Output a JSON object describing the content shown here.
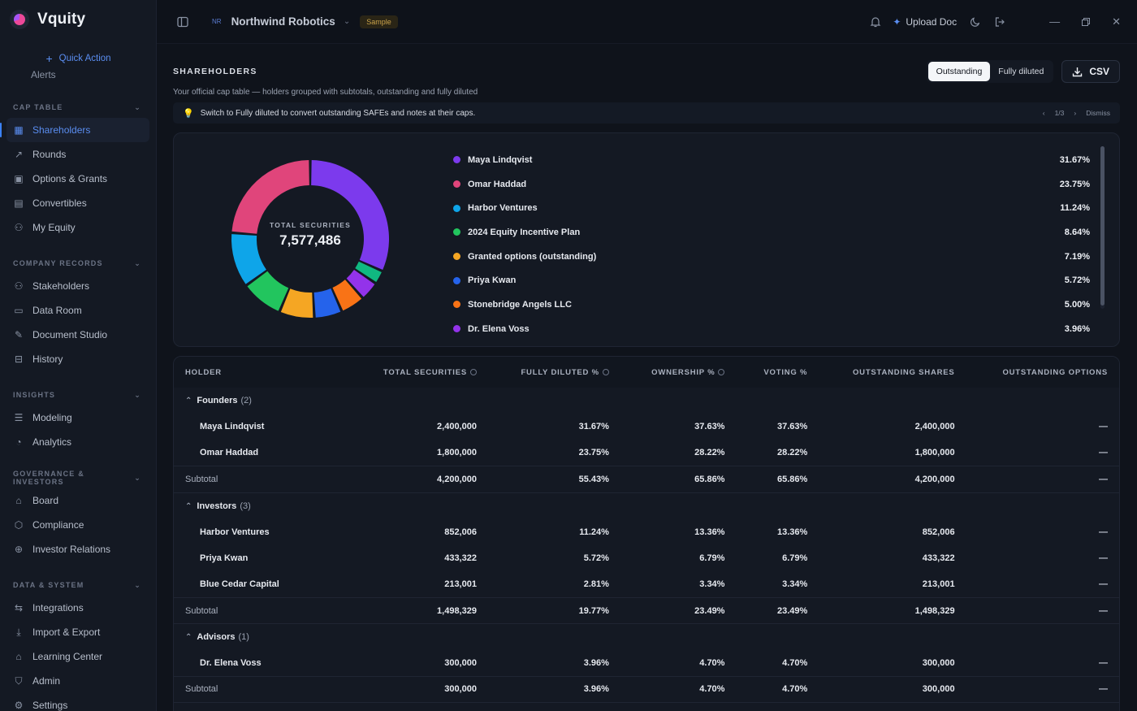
{
  "app": {
    "name": "Vquity",
    "quick_action": "Quick Action"
  },
  "sidebar": {
    "clipped_item": "Alerts",
    "sections": [
      {
        "title": "CAP TABLE",
        "items": [
          {
            "label": "Shareholders",
            "icon": "table-icon",
            "active": true
          },
          {
            "label": "Rounds",
            "icon": "trend-icon"
          },
          {
            "label": "Options & Grants",
            "icon": "briefcase-icon"
          },
          {
            "label": "Convertibles",
            "icon": "file-icon"
          },
          {
            "label": "My Equity",
            "icon": "user-icon"
          }
        ]
      },
      {
        "title": "COMPANY RECORDS",
        "items": [
          {
            "label": "Stakeholders",
            "icon": "users-icon"
          },
          {
            "label": "Data Room",
            "icon": "folder-icon"
          },
          {
            "label": "Document Studio",
            "icon": "edit-file-icon"
          },
          {
            "label": "History",
            "icon": "history-icon"
          }
        ]
      },
      {
        "title": "INSIGHTS",
        "items": [
          {
            "label": "Modeling",
            "icon": "sliders-icon"
          },
          {
            "label": "Analytics",
            "icon": "pie-icon"
          }
        ]
      },
      {
        "title": "GOVERNANCE & INVESTORS",
        "items": [
          {
            "label": "Board",
            "icon": "bank-icon"
          },
          {
            "label": "Compliance",
            "icon": "shield-icon"
          },
          {
            "label": "Investor Relations",
            "icon": "globe-icon"
          }
        ]
      },
      {
        "title": "DATA & SYSTEM",
        "items": [
          {
            "label": "Integrations",
            "icon": "swap-icon"
          },
          {
            "label": "Import & Export",
            "icon": "download-icon"
          },
          {
            "label": "Learning Center",
            "icon": "graduation-icon"
          },
          {
            "label": "Admin",
            "icon": "shield-check-icon"
          },
          {
            "label": "Settings",
            "icon": "gear-icon"
          }
        ]
      }
    ]
  },
  "topbar": {
    "org_badge": "NR",
    "org_name": "Northwind Robotics",
    "sample": "Sample",
    "upload": "Upload Doc"
  },
  "page": {
    "title": "SHAREHOLDERS",
    "toggle_outstanding": "Outstanding",
    "toggle_fully_diluted": "Fully diluted",
    "csv": "CSV",
    "subtitle": "Your official cap table — holders grouped with subtotals, outstanding and fully diluted",
    "tip": "Switch to Fully diluted to convert outstanding SAFEs and notes at their caps.",
    "tip_pager": "1/3",
    "tip_dismiss": "Dismiss"
  },
  "chart_data": {
    "type": "pie",
    "center_label": "TOTAL SECURITIES",
    "center_value": "7,577,486",
    "legend": [
      {
        "name": "Maya Lindqvist",
        "pct": "31.67%",
        "value": 31.67,
        "color": "#7c3aed"
      },
      {
        "name": "Omar Haddad",
        "pct": "23.75%",
        "value": 23.75,
        "color": "#e0457b"
      },
      {
        "name": "Harbor Ventures",
        "pct": "11.24%",
        "value": 11.24,
        "color": "#0ea5e9"
      },
      {
        "name": "2024 Equity Incentive Plan",
        "pct": "8.64%",
        "value": 8.64,
        "color": "#22c55e"
      },
      {
        "name": "Granted options (outstanding)",
        "pct": "7.19%",
        "value": 7.19,
        "color": "#f5a623"
      },
      {
        "name": "Priya Kwan",
        "pct": "5.72%",
        "value": 5.72,
        "color": "#2563eb"
      },
      {
        "name": "Stonebridge Angels LLC",
        "pct": "5.00%",
        "value": 5.0,
        "color": "#f97316"
      },
      {
        "name": "Dr. Elena Voss",
        "pct": "3.96%",
        "value": 3.96,
        "color": "#9333ea"
      }
    ],
    "extra_slices": [
      {
        "value": 2.81,
        "color": "#10b981"
      }
    ]
  },
  "table": {
    "headers": [
      "HOLDER",
      "TOTAL SECURITIES",
      "FULLY DILUTED %",
      "OWNERSHIP %",
      "VOTING %",
      "OUTSTANDING SHARES",
      "OUTSTANDING OPTIONS"
    ],
    "groups": [
      {
        "name": "Founders",
        "count": "(2)",
        "rows": [
          [
            "Maya Lindqvist",
            "2,400,000",
            "31.67%",
            "37.63%",
            "37.63%",
            "2,400,000",
            "—"
          ],
          [
            "Omar Haddad",
            "1,800,000",
            "23.75%",
            "28.22%",
            "28.22%",
            "1,800,000",
            "—"
          ]
        ],
        "subtotal": [
          "Subtotal",
          "4,200,000",
          "55.43%",
          "65.86%",
          "65.86%",
          "4,200,000",
          "—"
        ]
      },
      {
        "name": "Investors",
        "count": "(3)",
        "rows": [
          [
            "Harbor Ventures",
            "852,006",
            "11.24%",
            "13.36%",
            "13.36%",
            "852,006",
            "—"
          ],
          [
            "Priya Kwan",
            "433,322",
            "5.72%",
            "6.79%",
            "6.79%",
            "433,322",
            "—"
          ],
          [
            "Blue Cedar Capital",
            "213,001",
            "2.81%",
            "3.34%",
            "3.34%",
            "213,001",
            "—"
          ]
        ],
        "subtotal": [
          "Subtotal",
          "1,498,329",
          "19.77%",
          "23.49%",
          "23.49%",
          "1,498,329",
          "—"
        ]
      },
      {
        "name": "Advisors",
        "count": "(1)",
        "rows": [
          [
            "Dr. Elena Voss",
            "300,000",
            "3.96%",
            "4.70%",
            "4.70%",
            "300,000",
            "—"
          ]
        ],
        "subtotal": [
          "Subtotal",
          "300,000",
          "3.96%",
          "4.70%",
          "4.70%",
          "300,000",
          "—"
        ]
      }
    ]
  }
}
